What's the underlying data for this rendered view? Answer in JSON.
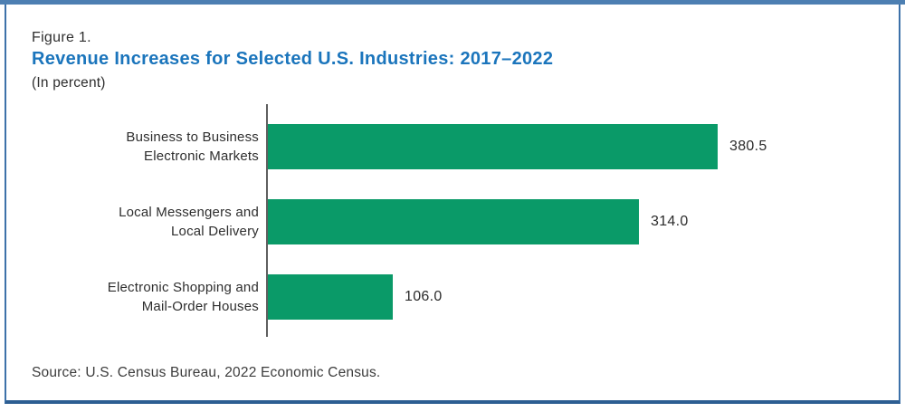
{
  "figure": {
    "label": "Figure 1.",
    "title": "Revenue Increases for Selected U.S. Industries: 2017–2022",
    "subtitle": "(In percent)",
    "source": "Source: U.S. Census Bureau, 2022 Economic Census."
  },
  "colors": {
    "bar": "#0a9a68",
    "title": "#1b75bc",
    "frame_top": "#4d7fb2",
    "frame_side": "#3d71a9",
    "frame_bottom": "#2d5e92",
    "axis": "#5f5f5f"
  },
  "chart_data": {
    "type": "bar",
    "orientation": "horizontal",
    "title": "Revenue Increases for Selected U.S. Industries: 2017–2022",
    "subtitle": "(In percent)",
    "xlabel": "",
    "ylabel": "",
    "categories": [
      [
        "Business to Business",
        "Electronic Markets"
      ],
      [
        "Local Messengers and",
        "Local Delivery"
      ],
      [
        "Electronic Shopping and",
        "Mail-Order Houses"
      ]
    ],
    "values": [
      380.5,
      314.0,
      106.0
    ],
    "value_labels": [
      "380.5",
      "314.0",
      "106.0"
    ],
    "xlim": [
      0,
      420
    ],
    "grid": false,
    "legend": null,
    "source": "Source: U.S. Census Bureau, 2022 Economic Census."
  }
}
